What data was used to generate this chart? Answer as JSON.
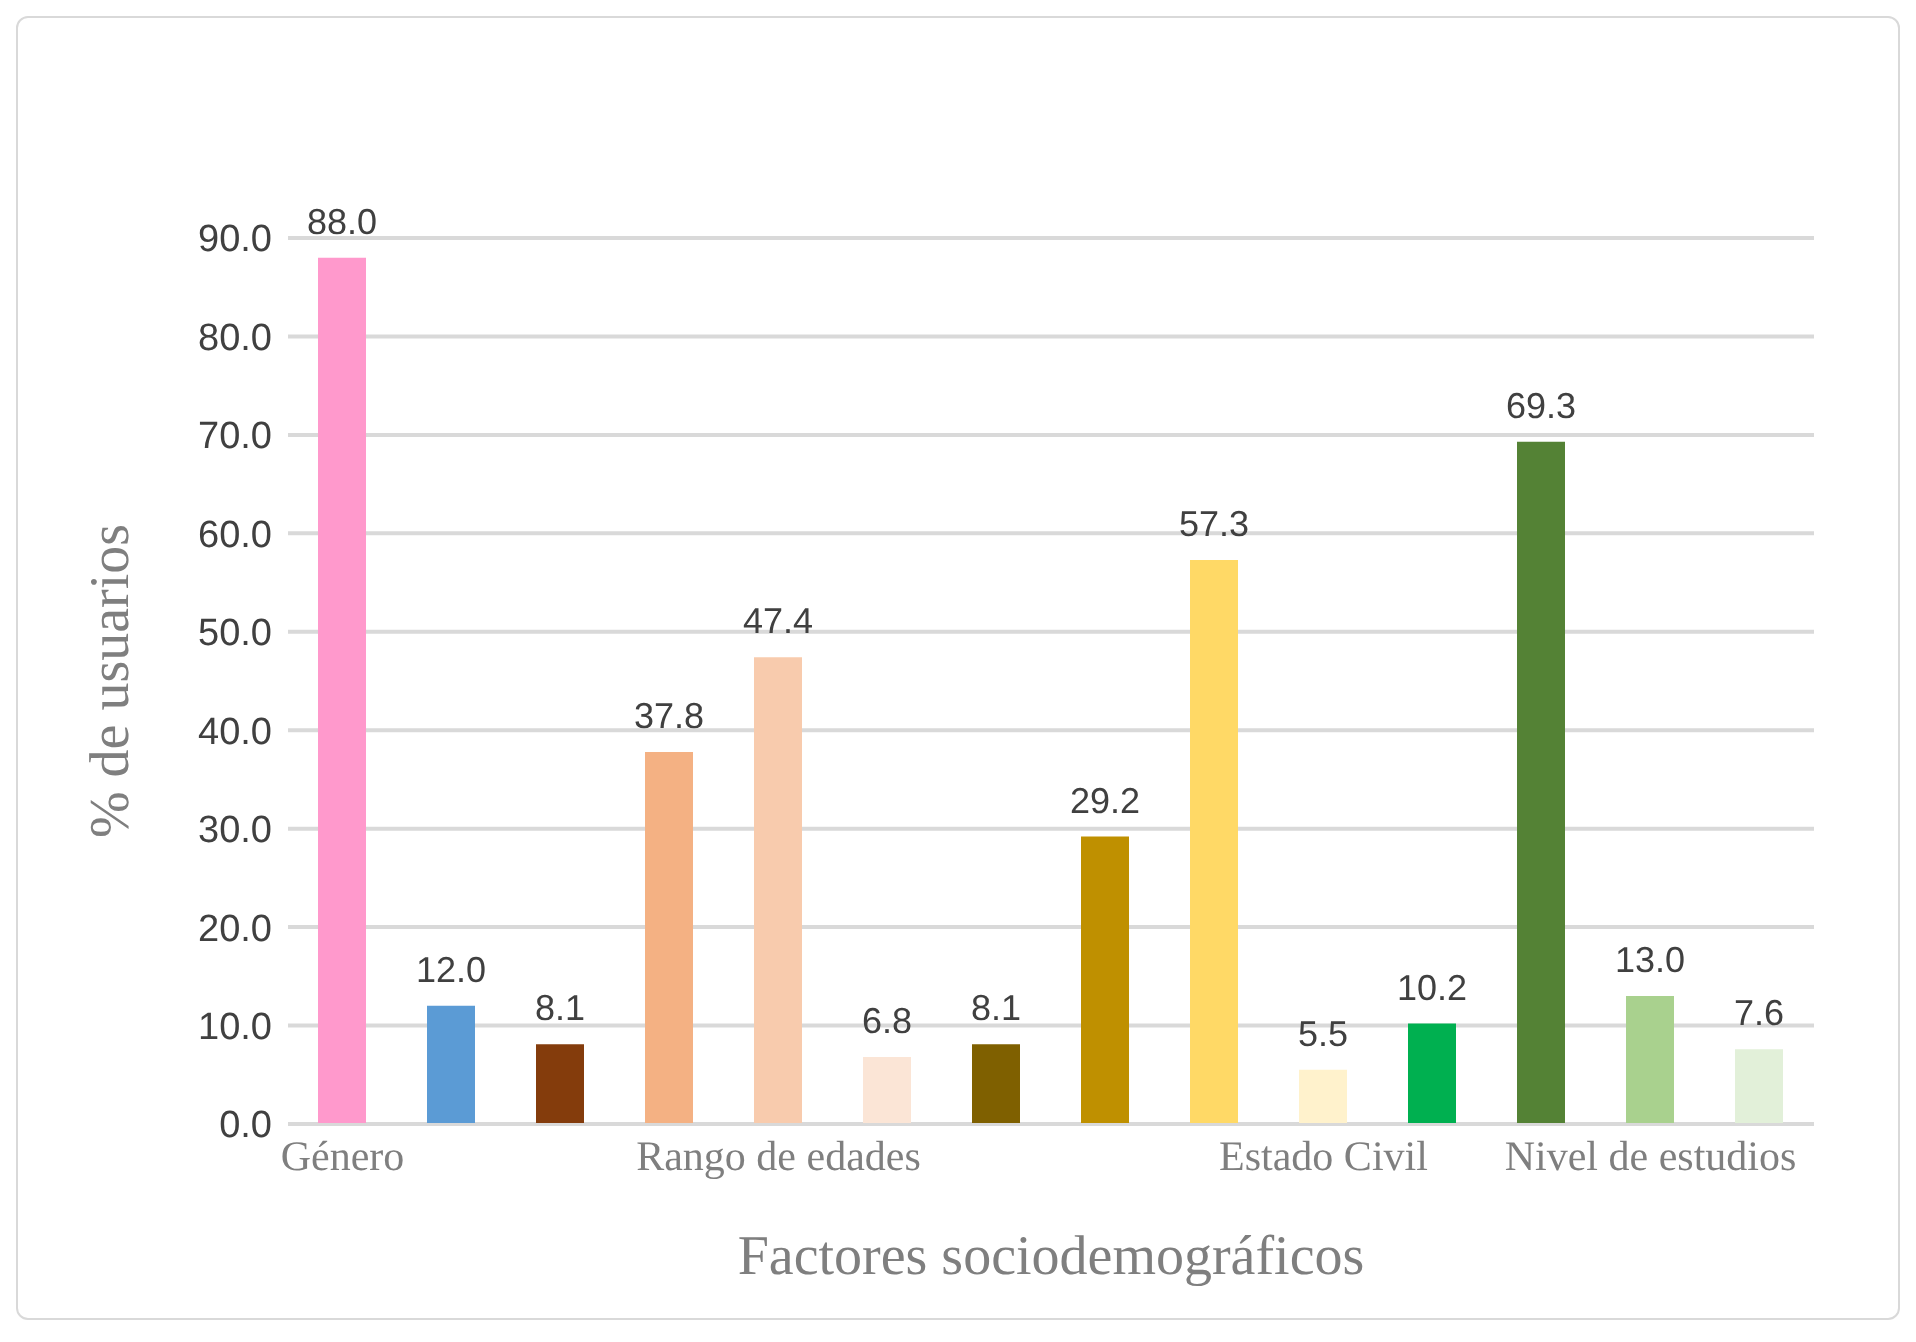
{
  "chart_data": {
    "type": "bar",
    "xlabel": "Factores sociodemográficos",
    "ylabel": "% de usuarios",
    "categories": [
      "Género",
      null,
      null,
      null,
      "Rango de edades",
      null,
      null,
      null,
      null,
      "Estado Civil",
      null,
      null,
      "Nivel de estudios",
      null
    ],
    "values": [
      88.0,
      12.0,
      8.1,
      37.8,
      47.4,
      6.8,
      8.1,
      29.2,
      57.3,
      5.5,
      10.2,
      69.3,
      13.0,
      7.6
    ],
    "value_labels": [
      "88.0",
      "12.0",
      "8.1",
      "37.8",
      "47.4",
      "6.8",
      "8.1",
      "29.2",
      "57.3",
      "5.5",
      "10.2",
      "69.3",
      "13.0",
      "7.6"
    ],
    "colors": [
      "#ff99cc",
      "#5b9bd5",
      "#843c0c",
      "#f4b183",
      "#f8cbad",
      "#fbe5d6",
      "#7f6000",
      "#bf9000",
      "#ffd966",
      "#fff2cc",
      "#00b050",
      "#548235",
      "#a9d18e",
      "#e2f0d9"
    ],
    "ylim": [
      0,
      90
    ],
    "yticks": [
      {
        "value": 0,
        "label": "0.0"
      },
      {
        "value": 10,
        "label": "10.0"
      },
      {
        "value": 20,
        "label": "20.0"
      },
      {
        "value": 30,
        "label": "30.0"
      },
      {
        "value": 40,
        "label": "40.0"
      },
      {
        "value": 50,
        "label": "50.0"
      },
      {
        "value": 60,
        "label": "60.0"
      },
      {
        "value": 70,
        "label": "70.0"
      },
      {
        "value": 80,
        "label": "80.0"
      },
      {
        "value": 90,
        "label": "90.0"
      }
    ],
    "grid": "y"
  }
}
